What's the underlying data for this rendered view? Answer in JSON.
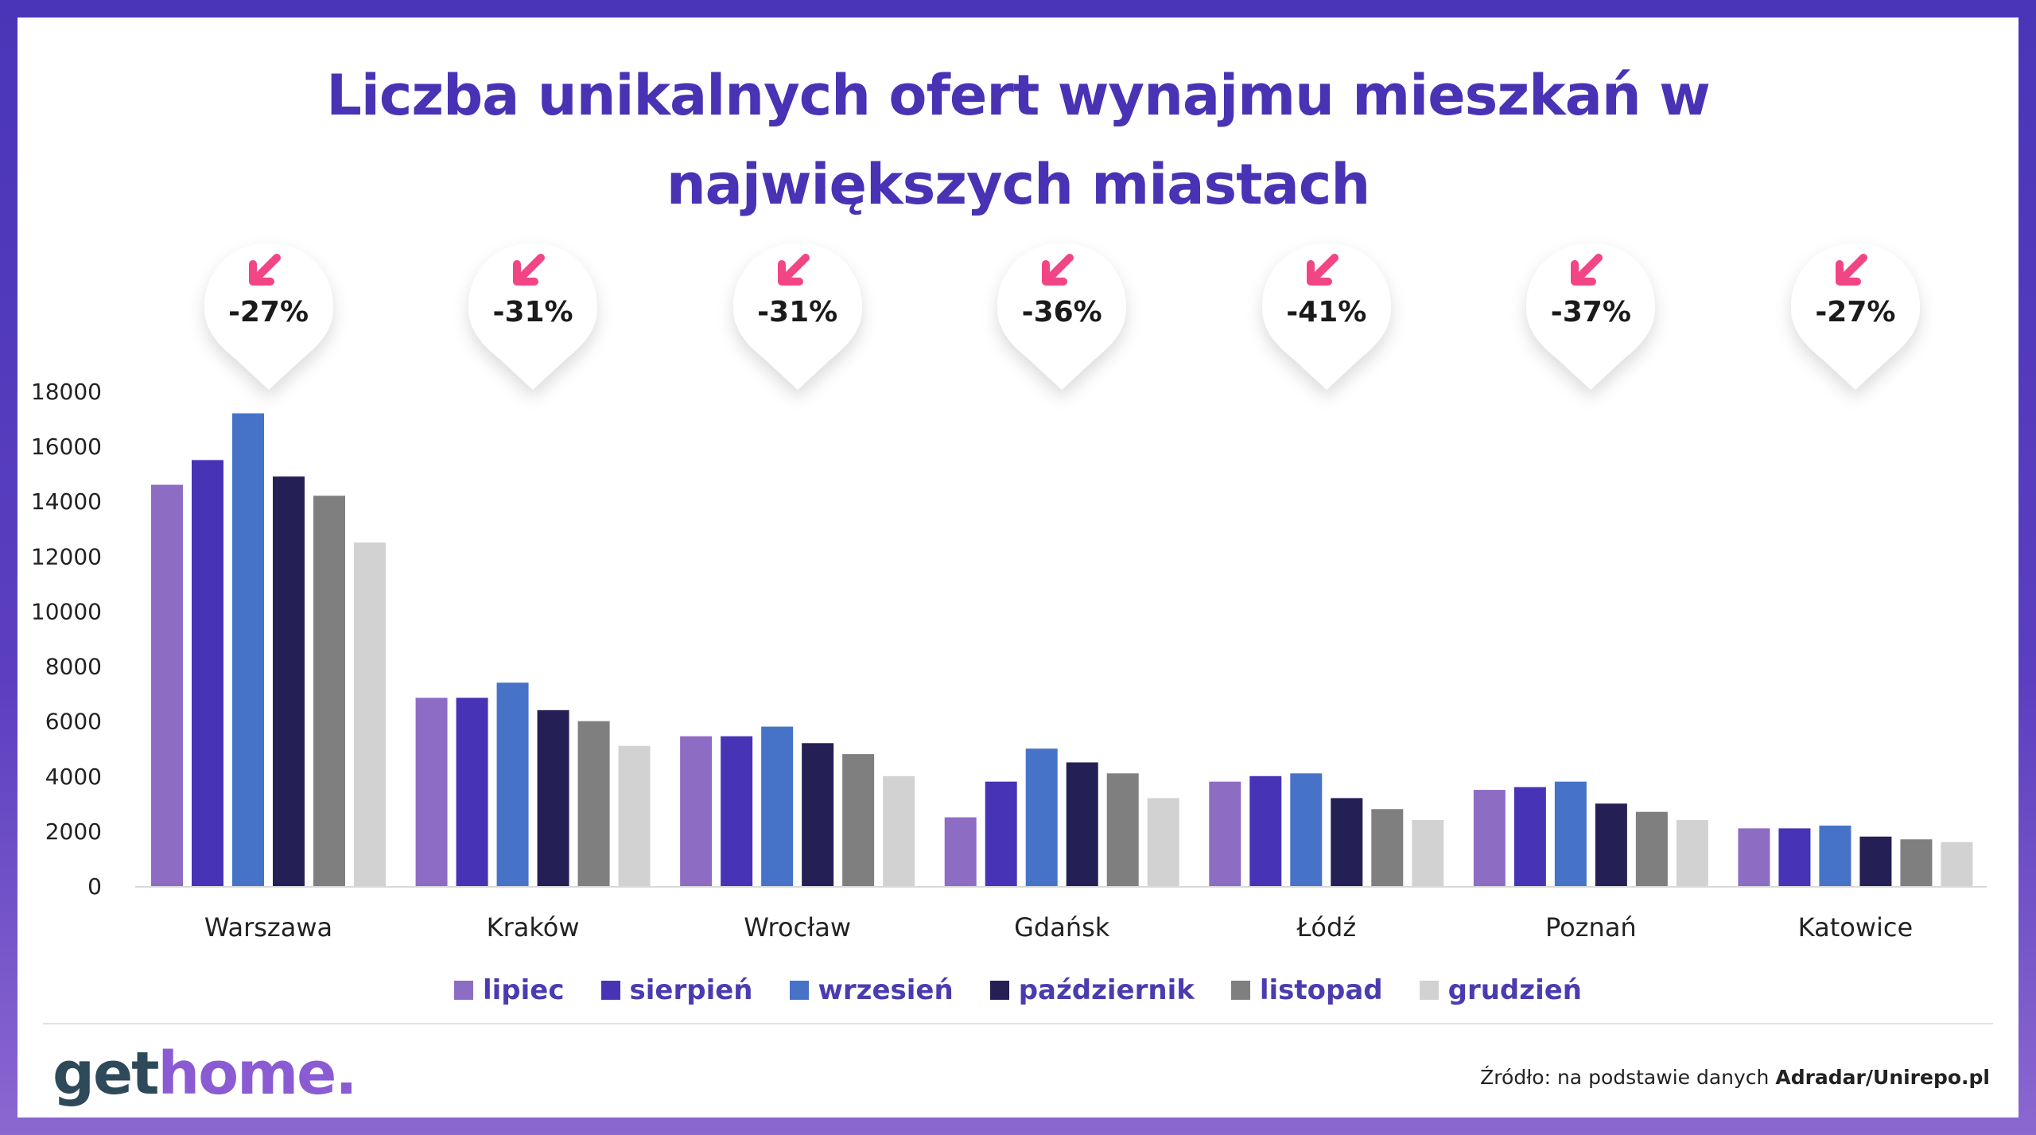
{
  "title_lines": [
    "Liczba unikalnych ofert wynajmu mieszkań w",
    "największych miastach"
  ],
  "changes": [
    "-27%",
    "-31%",
    "-31%",
    "-36%",
    "-41%",
    "-37%",
    "-27%"
  ],
  "colors": {
    "frame": "#4a35b8",
    "title": "#4a32b5",
    "arrow": "#f24585",
    "legend_text": "#4a3cb0"
  },
  "chart_data": {
    "type": "bar",
    "categories": [
      "Warszawa",
      "Kraków",
      "Wrocław",
      "Gdańsk",
      "Łódź",
      "Poznań",
      "Katowice"
    ],
    "series": [
      {
        "name": "lipiec",
        "color": "#8d6cc4",
        "values": [
          14600,
          6850,
          5450,
          2500,
          3800,
          3500,
          2100
        ]
      },
      {
        "name": "sierpień",
        "color": "#4733b6",
        "values": [
          15500,
          6850,
          5450,
          3800,
          4000,
          3600,
          2100
        ]
      },
      {
        "name": "wrzesień",
        "color": "#4673c8",
        "values": [
          17200,
          7400,
          5800,
          5000,
          4100,
          3800,
          2200
        ]
      },
      {
        "name": "październik",
        "color": "#241f55",
        "values": [
          14900,
          6400,
          5200,
          4500,
          3200,
          3000,
          1800
        ]
      },
      {
        "name": "listopad",
        "color": "#7f7f7f",
        "values": [
          14200,
          6000,
          4800,
          4100,
          2800,
          2700,
          1700
        ]
      },
      {
        "name": "grudzień",
        "color": "#d2d2d2",
        "values": [
          12500,
          5100,
          4000,
          3200,
          2400,
          2400,
          1600
        ]
      }
    ],
    "yticks": [
      0,
      2000,
      4000,
      6000,
      8000,
      10000,
      12000,
      14000,
      16000,
      18000
    ],
    "ylim": [
      0,
      18000
    ],
    "grid": false,
    "legend": "bottom"
  },
  "logo": {
    "part1": "get",
    "part2": "home."
  },
  "source": {
    "prefix": "Źródło: na podstawie danych ",
    "bold": "Adradar/Unirepo.pl"
  }
}
